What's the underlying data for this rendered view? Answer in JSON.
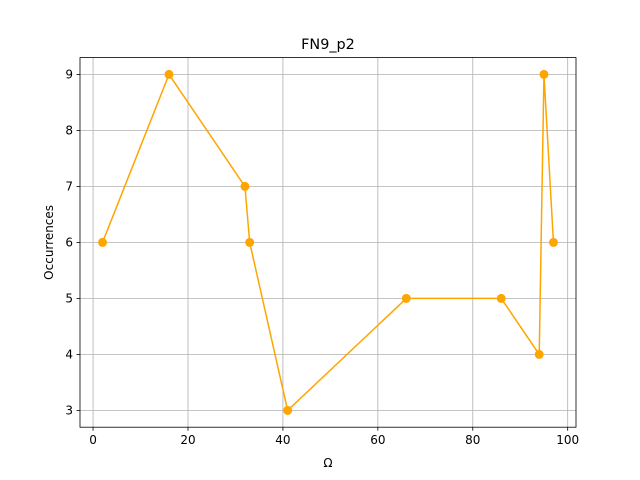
{
  "chart_data": {
    "type": "line",
    "title": "FN9_p2",
    "xlabel": "Ω",
    "ylabel": "Occurrences",
    "xlim": [
      -2.75,
      101.75
    ],
    "ylim": [
      2.7,
      9.3
    ],
    "xticks": [
      0,
      20,
      40,
      60,
      80,
      100
    ],
    "yticks": [
      3,
      4,
      5,
      6,
      7,
      8,
      9
    ],
    "grid": true,
    "series": [
      {
        "color": "#FFA500",
        "marker": "circle",
        "x": [
          2,
          16,
          32,
          33,
          41,
          66,
          86,
          94,
          95,
          97
        ],
        "y": [
          6,
          9,
          7,
          6,
          3,
          5,
          5,
          4,
          9,
          6
        ]
      }
    ]
  }
}
